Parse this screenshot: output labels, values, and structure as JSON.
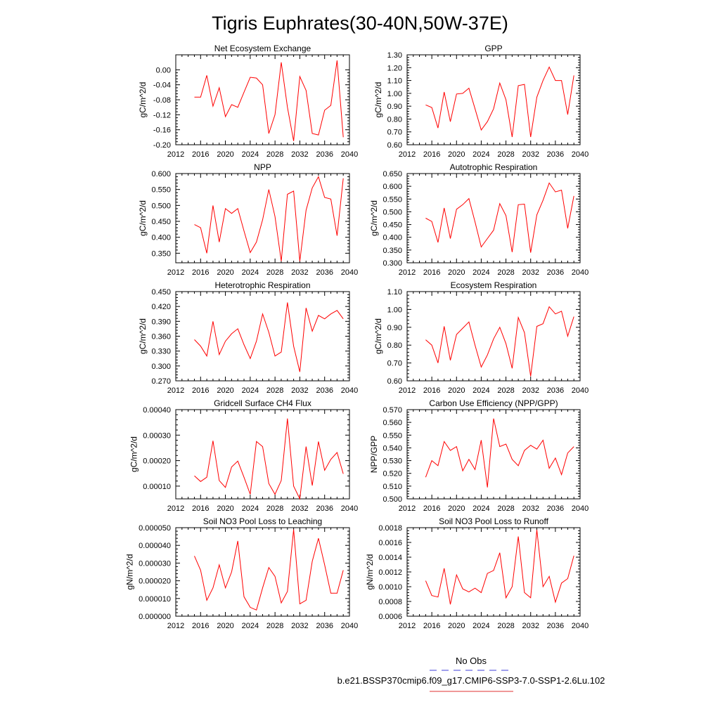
{
  "figure": {
    "title": "Tigris Euphrates(30-40N,50W-37E)",
    "legend": {
      "entries": [
        {
          "label": "No Obs",
          "color": "#3f3fd8",
          "dash": true
        },
        {
          "label": "b.e21.BSSP370cmip6.f09_g17.CMIP6-SSP3-7.0-SSP1-2.6Lu.102",
          "color": "#e03030",
          "dash": false
        }
      ]
    }
  },
  "chart_data": [
    {
      "type": "line",
      "title": "Net Ecosystem Exchange",
      "xlabel": "",
      "ylabel": "gC/m^2/d",
      "xlim": [
        2012,
        2040
      ],
      "ylim": [
        -0.2,
        0.04
      ],
      "xticks": [
        "2012",
        "2016",
        "2020",
        "2024",
        "2028",
        "2032",
        "2036",
        "2040"
      ],
      "yticks": [
        "0.00",
        "-0.04",
        "-0.08",
        "-0.12",
        "-0.16",
        "-0.20"
      ],
      "ytick_values": [
        0.0,
        -0.04,
        -0.08,
        -0.12,
        -0.16,
        -0.2
      ],
      "color": "#ff0000",
      "x": [
        2015,
        2016,
        2017,
        2018,
        2019,
        2020,
        2021,
        2022,
        2023,
        2024,
        2025,
        2026,
        2027,
        2028,
        2029,
        2030,
        2031,
        2032,
        2033,
        2034,
        2035,
        2036,
        2037,
        2038,
        2039
      ],
      "y": [
        -0.073,
        -0.073,
        -0.015,
        -0.097,
        -0.048,
        -0.125,
        -0.093,
        -0.1,
        -0.06,
        -0.02,
        -0.022,
        -0.04,
        -0.17,
        -0.12,
        0.02,
        -0.1,
        -0.19,
        -0.018,
        -0.055,
        -0.17,
        -0.174,
        -0.108,
        -0.095,
        0.025,
        -0.18
      ]
    },
    {
      "type": "line",
      "title": "GPP",
      "xlabel": "",
      "ylabel": "gC/m^2/d",
      "xlim": [
        2012,
        2040
      ],
      "ylim": [
        0.6,
        1.3
      ],
      "xticks": [
        "2012",
        "2016",
        "2020",
        "2024",
        "2028",
        "2032",
        "2036",
        "2040"
      ],
      "yticks": [
        "1.30",
        "1.20",
        "1.10",
        "1.00",
        "0.90",
        "0.80",
        "0.70",
        "0.60"
      ],
      "ytick_values": [
        1.3,
        1.2,
        1.1,
        1.0,
        0.9,
        0.8,
        0.7,
        0.6
      ],
      "color": "#ff0000",
      "x": [
        2015,
        2016,
        2017,
        2018,
        2019,
        2020,
        2021,
        2022,
        2023,
        2024,
        2025,
        2026,
        2027,
        2028,
        2029,
        2030,
        2031,
        2032,
        2033,
        2034,
        2035,
        2036,
        2037,
        2038,
        2039
      ],
      "y": [
        0.91,
        0.89,
        0.73,
        1.01,
        0.78,
        0.995,
        1.0,
        1.04,
        0.88,
        0.715,
        0.78,
        0.88,
        1.08,
        0.95,
        0.66,
        1.06,
        1.07,
        0.66,
        0.97,
        1.1,
        1.205,
        1.1,
        1.1,
        0.835,
        1.14
      ]
    },
    {
      "type": "line",
      "title": "NPP",
      "xlabel": "",
      "ylabel": "gC/m^2/d",
      "xlim": [
        2012,
        2040
      ],
      "ylim": [
        0.32,
        0.6
      ],
      "xticks": [
        "2012",
        "2016",
        "2020",
        "2024",
        "2028",
        "2032",
        "2036",
        "2040"
      ],
      "yticks": [
        "0.600",
        "0.550",
        "0.500",
        "0.450",
        "0.400",
        "0.350"
      ],
      "ytick_values": [
        0.6,
        0.55,
        0.5,
        0.45,
        0.4,
        0.35
      ],
      "color": "#ff0000",
      "x": [
        2015,
        2016,
        2017,
        2018,
        2019,
        2020,
        2021,
        2022,
        2023,
        2024,
        2025,
        2026,
        2027,
        2028,
        2029,
        2030,
        2031,
        2032,
        2033,
        2034,
        2035,
        2036,
        2037,
        2038,
        2039
      ],
      "y": [
        0.44,
        0.43,
        0.35,
        0.5,
        0.385,
        0.49,
        0.475,
        0.49,
        0.42,
        0.352,
        0.385,
        0.455,
        0.55,
        0.465,
        0.325,
        0.535,
        0.545,
        0.325,
        0.485,
        0.555,
        0.59,
        0.525,
        0.52,
        0.405,
        0.585
      ]
    },
    {
      "type": "line",
      "title": "Autotrophic Respiration",
      "xlabel": "",
      "ylabel": "gC/m^2/d",
      "xlim": [
        2012,
        2040
      ],
      "ylim": [
        0.3,
        0.65
      ],
      "xticks": [
        "2012",
        "2016",
        "2020",
        "2024",
        "2028",
        "2032",
        "2036",
        "2040"
      ],
      "yticks": [
        "0.650",
        "0.600",
        "0.550",
        "0.500",
        "0.450",
        "0.400",
        "0.350",
        "0.300"
      ],
      "ytick_values": [
        0.65,
        0.6,
        0.55,
        0.5,
        0.45,
        0.4,
        0.35,
        0.3
      ],
      "color": "#ff0000",
      "x": [
        2015,
        2016,
        2017,
        2018,
        2019,
        2020,
        2021,
        2022,
        2023,
        2024,
        2025,
        2026,
        2027,
        2028,
        2029,
        2030,
        2031,
        2032,
        2033,
        2034,
        2035,
        2036,
        2037,
        2038,
        2039
      ],
      "y": [
        0.475,
        0.462,
        0.38,
        0.515,
        0.395,
        0.51,
        0.528,
        0.552,
        0.46,
        0.362,
        0.395,
        0.428,
        0.532,
        0.485,
        0.342,
        0.528,
        0.53,
        0.34,
        0.488,
        0.545,
        0.613,
        0.578,
        0.585,
        0.435,
        0.562
      ]
    },
    {
      "type": "line",
      "title": "Heterotrophic Respiration",
      "xlabel": "",
      "ylabel": "gC/m^2/d",
      "xlim": [
        2012,
        2040
      ],
      "ylim": [
        0.27,
        0.45
      ],
      "xticks": [
        "2012",
        "2016",
        "2020",
        "2024",
        "2028",
        "2032",
        "2036",
        "2040"
      ],
      "yticks": [
        "0.450",
        "0.420",
        "0.390",
        "0.360",
        "0.330",
        "0.300",
        "0.270"
      ],
      "ytick_values": [
        0.45,
        0.42,
        0.39,
        0.36,
        0.33,
        0.3,
        0.27
      ],
      "color": "#ff0000",
      "x": [
        2015,
        2016,
        2017,
        2018,
        2019,
        2020,
        2021,
        2022,
        2023,
        2024,
        2025,
        2026,
        2027,
        2028,
        2029,
        2030,
        2031,
        2032,
        2033,
        2034,
        2035,
        2036,
        2037,
        2038,
        2039
      ],
      "y": [
        0.353,
        0.34,
        0.32,
        0.39,
        0.323,
        0.35,
        0.365,
        0.375,
        0.343,
        0.315,
        0.35,
        0.405,
        0.368,
        0.32,
        0.328,
        0.428,
        0.34,
        0.288,
        0.417,
        0.37,
        0.402,
        0.395,
        0.405,
        0.412,
        0.395
      ]
    },
    {
      "type": "line",
      "title": "Ecosystem Respiration",
      "xlabel": "",
      "ylabel": "gC/m^2/d",
      "xlim": [
        2012,
        2040
      ],
      "ylim": [
        0.6,
        1.1
      ],
      "xticks": [
        "2012",
        "2016",
        "2020",
        "2024",
        "2028",
        "2032",
        "2036",
        "2040"
      ],
      "yticks": [
        "1.10",
        "1.00",
        "0.90",
        "0.80",
        "0.70",
        "0.60"
      ],
      "ytick_values": [
        1.1,
        1.0,
        0.9,
        0.8,
        0.7,
        0.6
      ],
      "color": "#ff0000",
      "x": [
        2015,
        2016,
        2017,
        2018,
        2019,
        2020,
        2021,
        2022,
        2023,
        2024,
        2025,
        2026,
        2027,
        2028,
        2029,
        2030,
        2031,
        2032,
        2033,
        2034,
        2035,
        2036,
        2037,
        2038,
        2039
      ],
      "y": [
        0.83,
        0.8,
        0.7,
        0.905,
        0.715,
        0.86,
        0.895,
        0.93,
        0.8,
        0.677,
        0.745,
        0.835,
        0.9,
        0.808,
        0.67,
        0.955,
        0.87,
        0.625,
        0.905,
        0.92,
        1.015,
        0.975,
        0.99,
        0.85,
        0.96
      ]
    },
    {
      "type": "line",
      "title": "Gridcell Surface CH4 Flux",
      "xlabel": "",
      "ylabel": "gC/m^2/d",
      "xlim": [
        2012,
        2040
      ],
      "ylim": [
        5e-05,
        0.0004
      ],
      "xticks": [
        "2012",
        "2016",
        "2020",
        "2024",
        "2028",
        "2032",
        "2036",
        "2040"
      ],
      "yticks": [
        "0.00040",
        "0.00030",
        "0.00020",
        "0.00010"
      ],
      "ytick_values": [
        0.0004,
        0.0003,
        0.0002,
        0.0001
      ],
      "color": "#ff0000",
      "x": [
        2015,
        2016,
        2017,
        2018,
        2019,
        2020,
        2021,
        2022,
        2023,
        2024,
        2025,
        2026,
        2027,
        2028,
        2029,
        2030,
        2031,
        2032,
        2033,
        2034,
        2035,
        2036,
        2037,
        2038,
        2039
      ],
      "y": [
        0.00014,
        0.000118,
        0.000135,
        0.000278,
        0.000122,
        9.5e-05,
        0.000175,
        0.000198,
        0.000135,
        6.8e-05,
        0.000275,
        0.000255,
        0.00011,
        6.8e-05,
        0.000122,
        0.000365,
        0.0001,
        5e-05,
        0.000255,
        0.000102,
        0.000275,
        0.000162,
        0.000205,
        0.000232,
        0.000148
      ]
    },
    {
      "type": "line",
      "title": "Carbon Use Efficiency (NPP/GPP)",
      "xlabel": "",
      "ylabel": "NPP/GPP",
      "xlim": [
        2012,
        2040
      ],
      "ylim": [
        0.5,
        0.57
      ],
      "xticks": [
        "2012",
        "2016",
        "2020",
        "2024",
        "2028",
        "2032",
        "2036",
        "2040"
      ],
      "yticks": [
        "0.570",
        "0.560",
        "0.550",
        "0.540",
        "0.530",
        "0.520",
        "0.510",
        "0.500"
      ],
      "ytick_values": [
        0.57,
        0.56,
        0.55,
        0.54,
        0.53,
        0.52,
        0.51,
        0.5
      ],
      "color": "#ff0000",
      "x": [
        2015,
        2016,
        2017,
        2018,
        2019,
        2020,
        2021,
        2022,
        2023,
        2024,
        2025,
        2026,
        2027,
        2028,
        2029,
        2030,
        2031,
        2032,
        2033,
        2034,
        2035,
        2036,
        2037,
        2038,
        2039
      ],
      "y": [
        0.517,
        0.53,
        0.526,
        0.545,
        0.538,
        0.541,
        0.522,
        0.531,
        0.523,
        0.546,
        0.509,
        0.563,
        0.541,
        0.543,
        0.531,
        0.526,
        0.538,
        0.542,
        0.539,
        0.546,
        0.524,
        0.532,
        0.519,
        0.536,
        0.541
      ]
    },
    {
      "type": "line",
      "title": "Soil NO3 Pool Loss to Leaching",
      "xlabel": "",
      "ylabel": "gN/m^2/d",
      "xlim": [
        2012,
        2040
      ],
      "ylim": [
        0.0,
        5e-05
      ],
      "xticks": [
        "2012",
        "2016",
        "2020",
        "2024",
        "2028",
        "2032",
        "2036",
        "2040"
      ],
      "yticks": [
        "0.000050",
        "0.000040",
        "0.000030",
        "0.000020",
        "0.000010",
        "0.000000"
      ],
      "ytick_values": [
        5e-05,
        4e-05,
        3e-05,
        2e-05,
        1e-05,
        0.0
      ],
      "color": "#ff0000",
      "x": [
        2015,
        2016,
        2017,
        2018,
        2019,
        2020,
        2021,
        2022,
        2023,
        2024,
        2025,
        2026,
        2027,
        2028,
        2029,
        2030,
        2031,
        2032,
        2033,
        2034,
        2035,
        2036,
        2037,
        2038,
        2039
      ],
      "y": [
        3.4e-05,
        2.6e-05,
        9e-06,
        1.6e-05,
        2.9e-05,
        1.6e-05,
        2.5e-05,
        4.25e-05,
        1.1e-05,
        5e-06,
        3.5e-06,
        1.6e-05,
        2.75e-05,
        2.25e-05,
        7.5e-06,
        1.4e-05,
        4.9e-05,
        7e-06,
        9e-06,
        3.1e-05,
        4.4e-05,
        2.9e-05,
        1.3e-05,
        1.3e-05,
        2.6e-05
      ]
    },
    {
      "type": "line",
      "title": "Soil NO3 Pool Loss to Runoff",
      "xlabel": "",
      "ylabel": "gN/m^2/d",
      "xlim": [
        2012,
        2040
      ],
      "ylim": [
        0.0006,
        0.0018
      ],
      "xticks": [
        "2012",
        "2016",
        "2020",
        "2024",
        "2028",
        "2032",
        "2036",
        "2040"
      ],
      "yticks": [
        "0.0018",
        "0.0016",
        "0.0014",
        "0.0012",
        "0.0010",
        "0.0008",
        "0.0006"
      ],
      "ytick_values": [
        0.0018,
        0.0016,
        0.0014,
        0.0012,
        0.001,
        0.0008,
        0.0006
      ],
      "color": "#ff0000",
      "x": [
        2015,
        2016,
        2017,
        2018,
        2019,
        2020,
        2021,
        2022,
        2023,
        2024,
        2025,
        2026,
        2027,
        2028,
        2029,
        2030,
        2031,
        2032,
        2033,
        2034,
        2035,
        2036,
        2037,
        2038,
        2039
      ],
      "y": [
        0.00108,
        0.00088,
        0.00086,
        0.00125,
        0.00076,
        0.00116,
        0.00097,
        0.00093,
        0.00098,
        0.00092,
        0.00118,
        0.00122,
        0.00146,
        0.00085,
        0.001,
        0.00168,
        0.00092,
        0.00085,
        0.00177,
        0.001,
        0.00114,
        0.00079,
        0.00105,
        0.00111,
        0.00142
      ]
    }
  ]
}
